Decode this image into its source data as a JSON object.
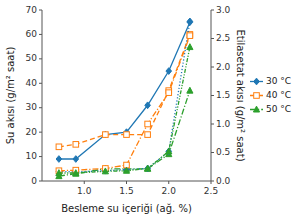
{
  "chart_data": {
    "type": "line",
    "xlabel": "Besleme su içeriği (ağ. %)",
    "ylabel": "Su akısı (g/m² saat)",
    "y2label": "Etilasetat akısı (g/m² saat)",
    "x": [
      0.7,
      0.9,
      1.25,
      1.5,
      1.75,
      2.0,
      2.25
    ],
    "xlim": [
      0.5,
      2.5
    ],
    "xticks": [
      {
        "value": 1.0,
        "label": "1.0"
      },
      1.5,
      {
        "value": 2.0,
        "label": "2.0"
      },
      2.5
    ],
    "ylim": [
      0,
      70
    ],
    "yticks": [
      0,
      10,
      20,
      30,
      40,
      50,
      60,
      70
    ],
    "y2lim": [
      0,
      3
    ],
    "y2ticks": [
      {
        "value": 0,
        "label": "0.0"
      },
      0.5,
      {
        "value": 1.0,
        "label": "1.0"
      },
      1.5,
      {
        "value": 2.0,
        "label": "2.0"
      },
      2.5,
      {
        "value": 3.0,
        "label": "3.0"
      }
    ],
    "grid": false,
    "legend": "right",
    "series": [
      {
        "name": "30 °C",
        "values": [
          9,
          9,
          19,
          20,
          31,
          45,
          65
        ],
        "marker": "diamond",
        "line_style": "solid"
      },
      {
        "name": "40 °C",
        "values": [
          14,
          15,
          19,
          19,
          19,
          37,
          60
        ],
        "marker": "square-open",
        "line_style": "dashed"
      },
      {
        "name": "50 °C",
        "values": [
          2,
          3,
          5,
          5,
          5,
          11,
          37
        ],
        "marker": "triangle",
        "line_style": "dashdot"
      },
      {
        "name": "30 °C",
        "axis": "y2",
        "values": [
          0.17,
          0.16,
          0.18,
          0.2,
          0.22,
          0.52,
          2.8
        ],
        "marker": "diamond",
        "line_style": "dotted"
      },
      {
        "name": "40 °C",
        "axis": "y2",
        "values": [
          0.18,
          0.19,
          0.22,
          0.28,
          1.0,
          1.55,
          2.55
        ],
        "marker": "square-open",
        "line_style": "dashdot"
      },
      {
        "name": "50 °C",
        "axis": "y2",
        "values": [
          0.14,
          0.14,
          0.17,
          0.18,
          0.22,
          0.52,
          2.35
        ],
        "marker": "triangle",
        "line_style": "dashdotdot"
      }
    ]
  }
}
